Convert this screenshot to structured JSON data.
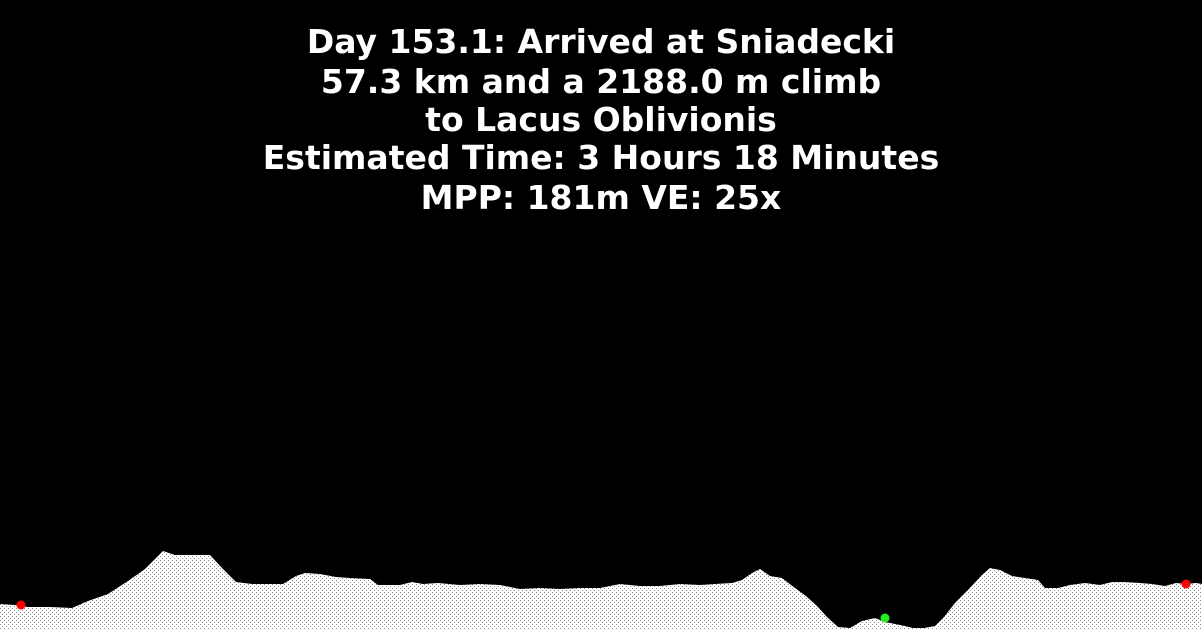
{
  "header": {
    "line1": "Day 153.1: Arrived at Sniadecki",
    "line2": "57.3 km and a 2188.0 m climb",
    "line3": "to Lacus Oblivionis",
    "line4": "Estimated Time: 3 Hours 18 Minutes",
    "line5": "MPP: 181m VE: 25x"
  },
  "markers": [
    {
      "name": "start",
      "color": "#ff0000"
    },
    {
      "name": "lowest",
      "color": "#22ee22"
    },
    {
      "name": "end",
      "color": "#ff0000"
    }
  ],
  "colors": {
    "background": "#000000",
    "text": "#ffffff",
    "terrain_fill": "#ffffff",
    "terrain_hatch": "#888888"
  }
}
